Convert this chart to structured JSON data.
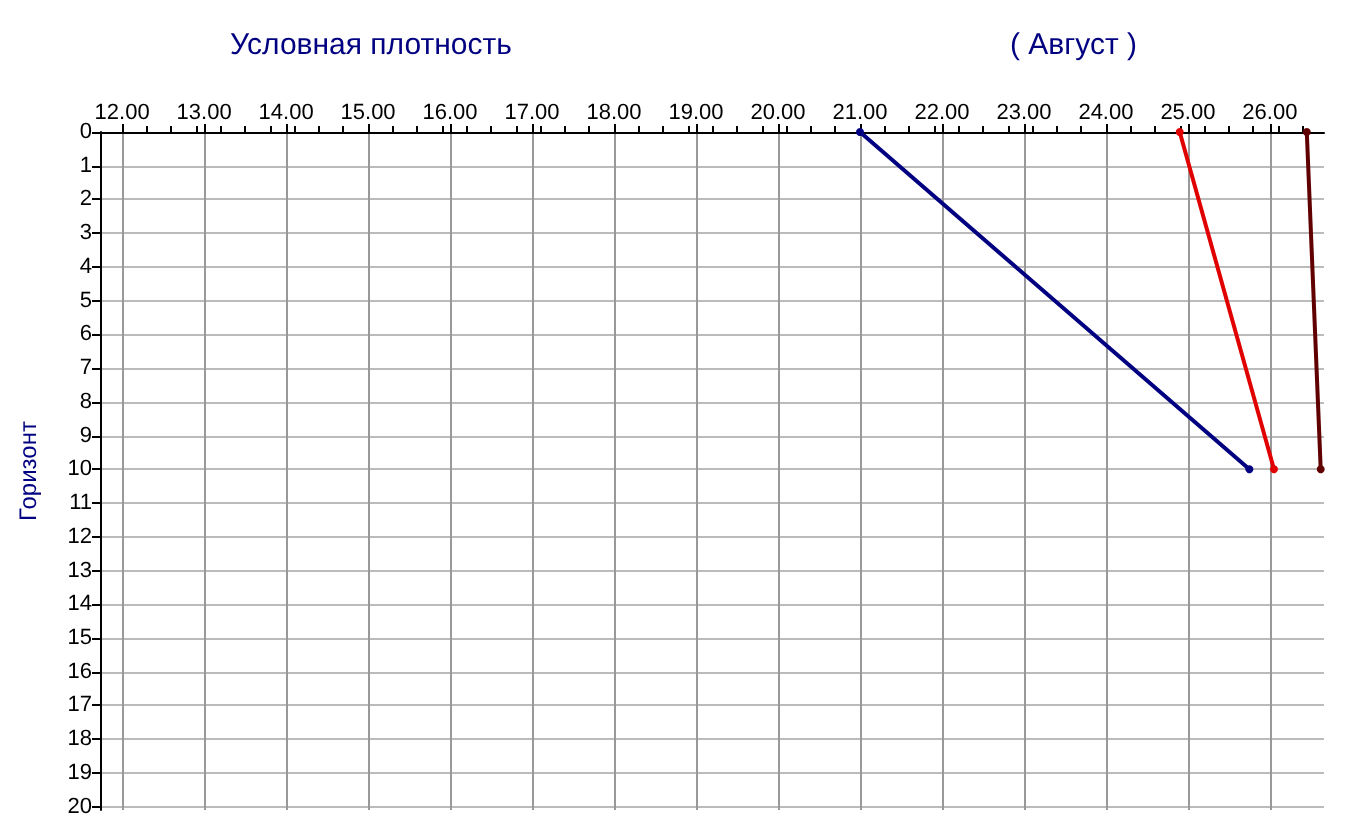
{
  "chart_data": {
    "type": "line",
    "title": "Условная плотность",
    "subtitle": "( Август )",
    "ylabel": "Горизонт",
    "series": [
      {
        "color": "#000080",
        "x": [
          21.0,
          25.75
        ],
        "values": [
          0,
          10
        ]
      },
      {
        "color": "#e00000",
        "x": [
          24.9,
          26.05
        ],
        "values": [
          0,
          10
        ]
      },
      {
        "color": "#600000",
        "x": [
          26.45,
          26.62
        ],
        "values": [
          0,
          10
        ]
      }
    ],
    "xlim": [
      11.73,
      26.66
    ],
    "xticks": [
      {
        "value": 12,
        "label": "12.00"
      },
      {
        "value": 13,
        "label": "13.00"
      },
      {
        "value": 14,
        "label": "14.00"
      },
      {
        "value": 15,
        "label": "15.00"
      },
      {
        "value": 16,
        "label": "16.00"
      },
      {
        "value": 17,
        "label": "17.00"
      },
      {
        "value": 18,
        "label": "18.00"
      },
      {
        "value": 19,
        "label": "19.00"
      },
      {
        "value": 20,
        "label": "20.00"
      },
      {
        "value": 21,
        "label": "21.00"
      },
      {
        "value": 22,
        "label": "22.00"
      },
      {
        "value": 23,
        "label": "23.00"
      },
      {
        "value": 24,
        "label": "24.00"
      },
      {
        "value": 25,
        "label": "25.00"
      },
      {
        "value": 26,
        "label": "26.00"
      }
    ],
    "ylim": [
      20.1,
      0
    ],
    "yticks": [
      0,
      1,
      2,
      3,
      4,
      5,
      6,
      7,
      8,
      9,
      10,
      11,
      12,
      13,
      14,
      15,
      16,
      17,
      18,
      19,
      20
    ],
    "grid": true,
    "marker": "circle",
    "line_style": "solid"
  }
}
